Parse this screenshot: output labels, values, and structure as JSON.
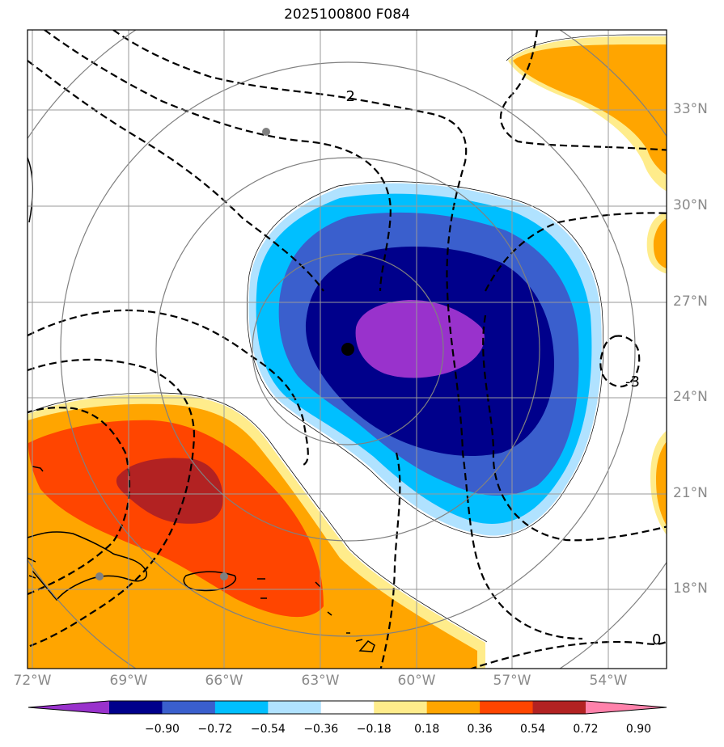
{
  "title": "2025100800 F084",
  "lon_labels": [
    "72°W",
    "69°W",
    "66°W",
    "63°W",
    "60°W",
    "57°W",
    "54°W"
  ],
  "lat_labels": [
    "33°N",
    "30°N",
    "27°N",
    "24°N",
    "21°N",
    "18°N"
  ],
  "contour_labels": [
    "-2",
    "-3",
    "0"
  ],
  "colorbar": {
    "ticks": [
      "−0.90",
      "−0.72",
      "−0.54",
      "−0.36",
      "−0.18",
      "0.18",
      "0.36",
      "0.54",
      "0.72",
      "0.90"
    ],
    "colors": [
      "#9932cc",
      "#00008b",
      "#3a5fcd",
      "#00bfff",
      "#b0e2ff",
      "#ffffff",
      "#ffec8b",
      "#ffa500",
      "#ff4500",
      "#b22222",
      "#ff82ab"
    ]
  },
  "colors": {
    "grid": "#9a9a9a",
    "coast": "#000000",
    "contour": "#000000"
  }
}
